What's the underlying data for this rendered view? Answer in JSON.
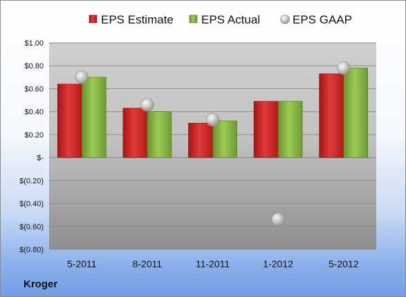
{
  "company": "Kroger",
  "colors": {
    "estimate": "#cc1f1f",
    "actual": "#7fa83a",
    "gaap": "#b5b5b5"
  },
  "chart_data": {
    "type": "bar",
    "categories": [
      "5-2011",
      "8-2011",
      "11-2011",
      "1-2012",
      "5-2012"
    ],
    "series": [
      {
        "name": "EPS Estimate",
        "type": "bar",
        "values": [
          0.64,
          0.43,
          0.3,
          0.49,
          0.73
        ]
      },
      {
        "name": "EPS Actual",
        "type": "bar",
        "values": [
          0.7,
          0.4,
          0.32,
          0.49,
          0.78
        ]
      },
      {
        "name": "EPS GAAP",
        "type": "scatter",
        "values": [
          0.7,
          0.46,
          0.33,
          -0.54,
          0.78
        ]
      }
    ],
    "ylim": [
      -0.8,
      1.0
    ],
    "ytick_labels": [
      "$1.00",
      "$0.80",
      "$0.60",
      "$0.40",
      "$0.20",
      "$-",
      "$(0.20)",
      "$(0.40)",
      "$(0.60)",
      "$(0.80)"
    ],
    "legend": "top",
    "grid": true
  }
}
